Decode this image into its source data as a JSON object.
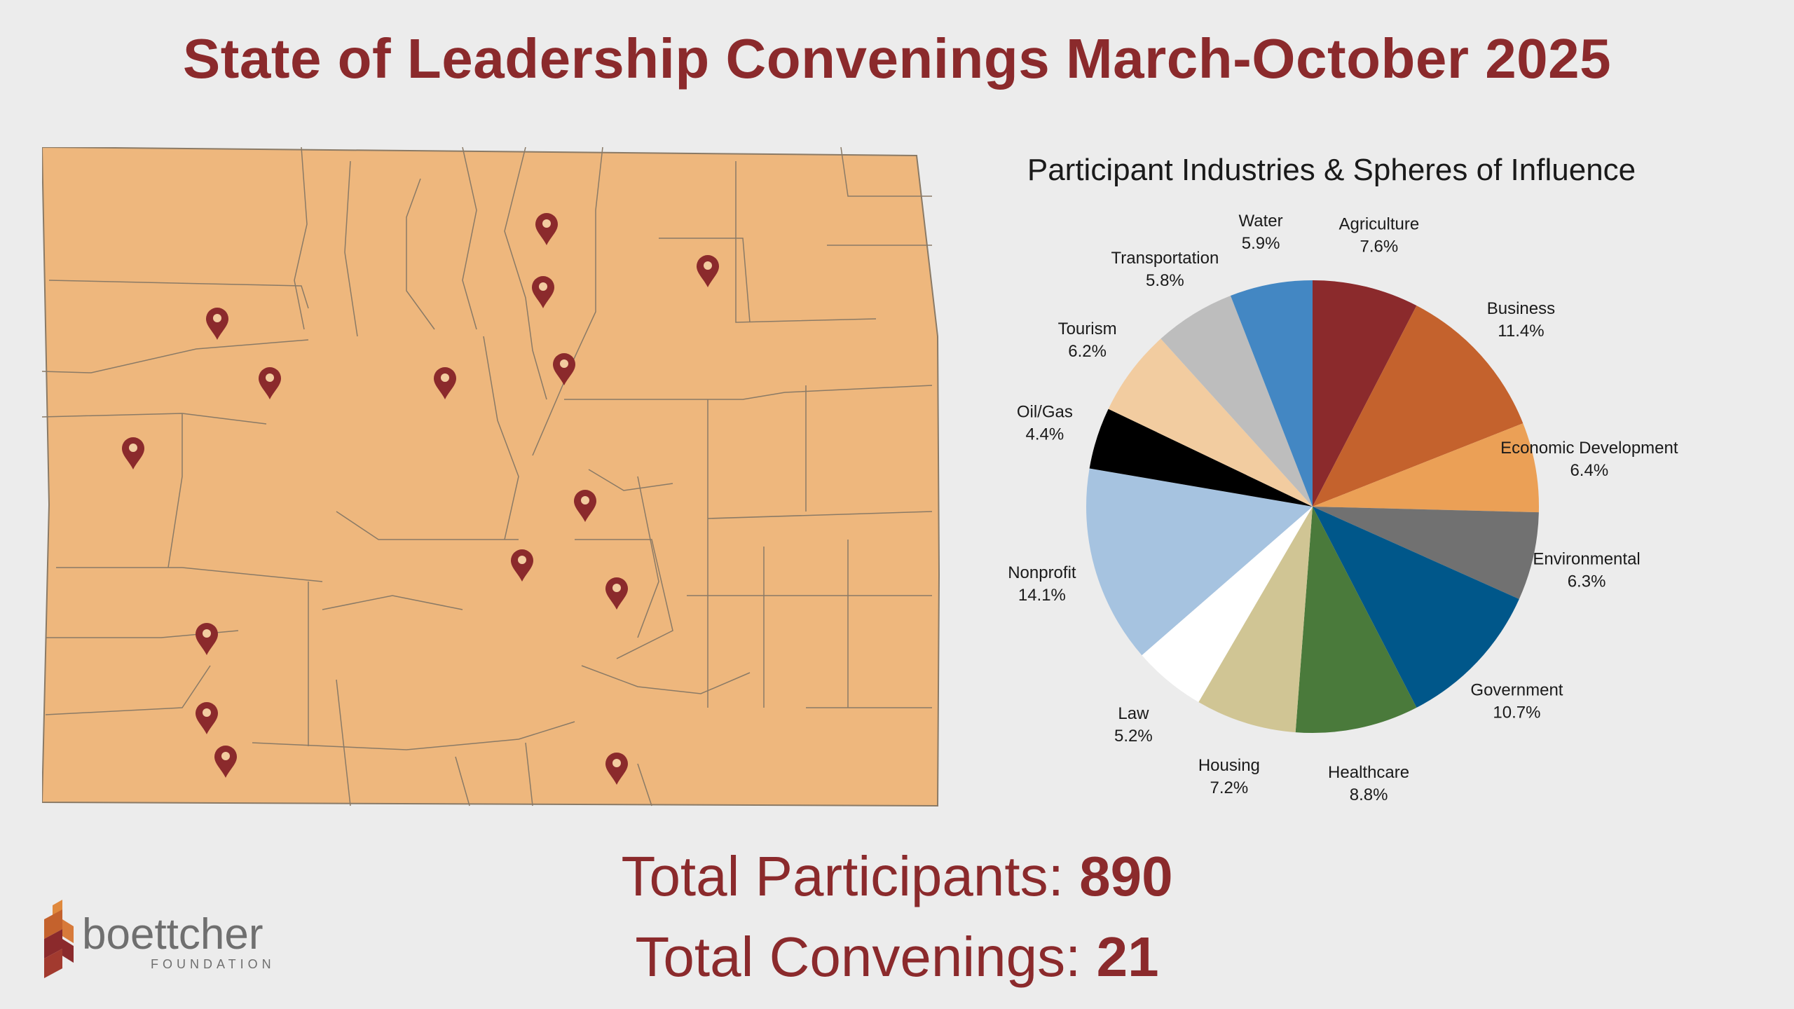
{
  "title": "State of Leadership Convenings March-October 2025",
  "totals": {
    "participants_label": "Total Participants:",
    "participants_value": "890",
    "convenings_label": "Total Convenings:",
    "convenings_value": "21"
  },
  "logo": {
    "name": "boettcher",
    "sub": "FOUNDATION"
  },
  "map": {
    "fill_color": "#eeb77d",
    "border_color": "#8a7a66",
    "pin_color": "#8b2a2c",
    "pin_icon": "map-pin-icon"
  },
  "colors": {
    "title": "#8b2a2c",
    "background": "#ececec"
  },
  "chart_data": {
    "type": "pie",
    "title": "Participant Industries & Spheres of Influence",
    "slices": [
      {
        "label": "Agriculture",
        "value": 7.6,
        "display": "7.6%",
        "color": "#8b2a2c"
      },
      {
        "label": "Business",
        "value": 11.4,
        "display": "11.4%",
        "color": "#c4622d"
      },
      {
        "label": "Economic Development",
        "value": 6.4,
        "display": "6.4%",
        "color": "#eba056"
      },
      {
        "label": "Environmental",
        "value": 6.3,
        "display": "6.3%",
        "color": "#717171"
      },
      {
        "label": "Government",
        "value": 10.7,
        "display": "10.7%",
        "color": "#00578a"
      },
      {
        "label": "Healthcare",
        "value": 8.8,
        "display": "8.8%",
        "color": "#4a7a3b"
      },
      {
        "label": "Housing",
        "value": 7.2,
        "display": "7.2%",
        "color": "#d0c594"
      },
      {
        "label": "Law",
        "value": 5.2,
        "display": "5.2%",
        "color": "#ffffff"
      },
      {
        "label": "Nonprofit",
        "value": 14.1,
        "display": "14.1%",
        "color": "#a6c3e0"
      },
      {
        "label": "Oil/Gas",
        "value": 4.4,
        "display": "4.4%",
        "color": "#000000"
      },
      {
        "label": "Tourism",
        "value": 6.2,
        "display": "6.2%",
        "color": "#f2cca0"
      },
      {
        "label": "Transportation",
        "value": 5.8,
        "display": "5.8%",
        "color": "#bdbdbd"
      },
      {
        "label": "Water",
        "value": 5.9,
        "display": "5.9%",
        "color": "#4387c3"
      }
    ]
  }
}
